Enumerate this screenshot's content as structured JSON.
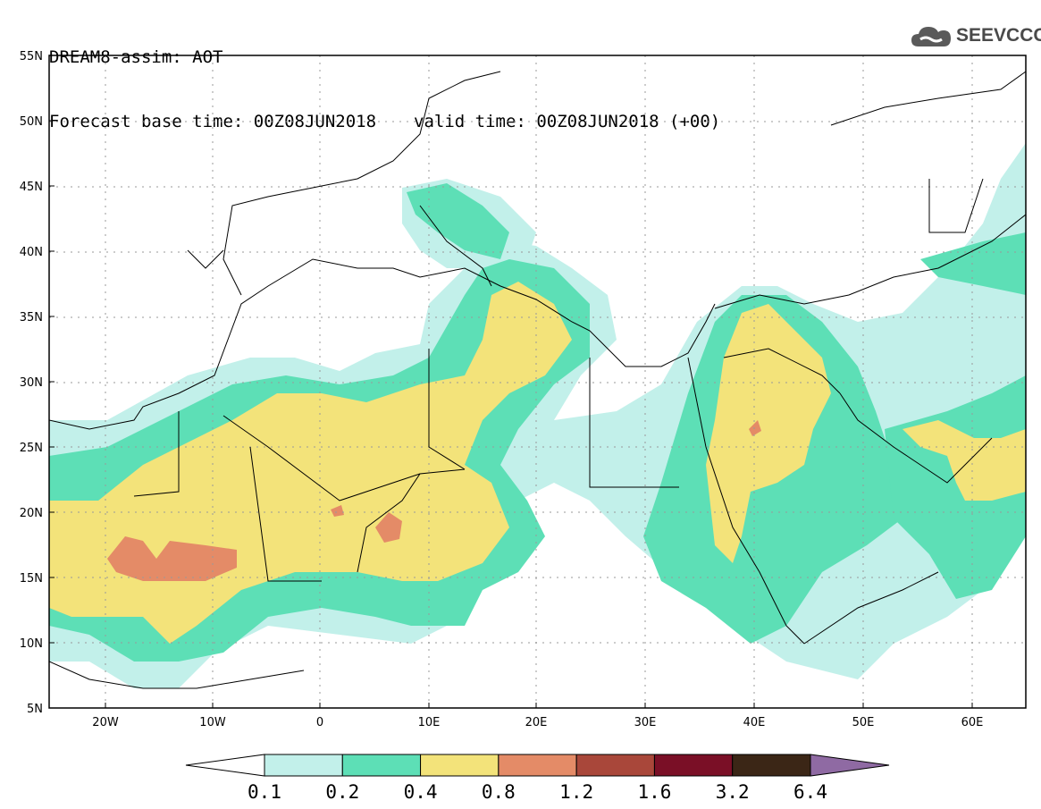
{
  "title": {
    "line1": "DREAM8-assim: AOT",
    "base_time": "Forecast base time: 00Z08JUN2018",
    "valid_time": "valid time: 00Z08JUN2018 (+00)"
  },
  "logo": {
    "text": "SEEVCCC",
    "icon": "cloud-icon"
  },
  "map": {
    "lat_labels": [
      "55N",
      "50N",
      "45N",
      "40N",
      "35N",
      "30N",
      "25N",
      "20N",
      "15N",
      "10N",
      "5N"
    ],
    "lon_labels": [
      "20W",
      "10W",
      "0",
      "10E",
      "20E",
      "30E",
      "40E",
      "50E",
      "60E"
    ],
    "lat_range": [
      5,
      55
    ],
    "lon_range": [
      -25,
      65
    ],
    "gridlines": "dotted"
  },
  "colorbar": {
    "labels": [
      "0.1",
      "0.2",
      "0.4",
      "0.8",
      "1.2",
      "1.6",
      "3.2",
      "6.4"
    ],
    "colors": [
      "#ffffff",
      "#c2f0ea",
      "#5ddfb6",
      "#f3e37a",
      "#e48b67",
      "#a9473a",
      "#7a0f26",
      "#3b2616",
      "#8f6aa3"
    ]
  },
  "field_colors": {
    "c1": "#c2f0ea",
    "c2": "#5ddfb6",
    "c3": "#f3e37a",
    "c4": "#e48b67"
  }
}
